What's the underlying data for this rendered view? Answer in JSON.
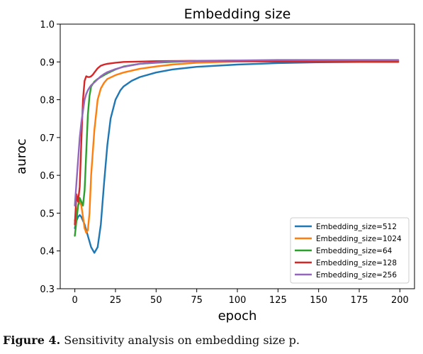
{
  "caption": {
    "label": "Figure 4.",
    "text": " Sensitivity analysis on embedding size p."
  },
  "chart_data": {
    "type": "line",
    "title": "Embedding size",
    "xlabel": "epoch",
    "ylabel": "auroc",
    "xlim": [
      -9,
      209
    ],
    "ylim": [
      0.3,
      1.0
    ],
    "xticks": [
      0,
      25,
      50,
      75,
      100,
      125,
      150,
      175,
      200
    ],
    "yticks": [
      0.3,
      0.4,
      0.5,
      0.6,
      0.7,
      0.8,
      0.9,
      1.0
    ],
    "grid": false,
    "legend_position": "lower-right",
    "series": [
      {
        "name": "Embedding_size=512",
        "color": "#1f77b4",
        "x": [
          0,
          1,
          2,
          3,
          4,
          6,
          8,
          10,
          12,
          14,
          16,
          18,
          20,
          22,
          25,
          28,
          30,
          35,
          40,
          50,
          60,
          75,
          100,
          125,
          150,
          175,
          199
        ],
        "y": [
          0.46,
          0.48,
          0.49,
          0.495,
          0.49,
          0.47,
          0.44,
          0.41,
          0.395,
          0.41,
          0.47,
          0.58,
          0.68,
          0.75,
          0.8,
          0.825,
          0.835,
          0.85,
          0.86,
          0.872,
          0.88,
          0.887,
          0.893,
          0.897,
          0.899,
          0.9,
          0.9
        ]
      },
      {
        "name": "Embedding_size=1024",
        "color": "#ff7f0e",
        "x": [
          0,
          1,
          2,
          3,
          4,
          5,
          6,
          7,
          8,
          9,
          10,
          12,
          14,
          16,
          18,
          20,
          25,
          30,
          40,
          50,
          60,
          75,
          100,
          125,
          150,
          175,
          199
        ],
        "y": [
          0.48,
          0.5,
          0.52,
          0.53,
          0.52,
          0.49,
          0.46,
          0.448,
          0.455,
          0.5,
          0.6,
          0.72,
          0.8,
          0.83,
          0.845,
          0.855,
          0.865,
          0.872,
          0.882,
          0.888,
          0.893,
          0.898,
          0.901,
          0.902,
          0.903,
          0.903,
          0.903
        ]
      },
      {
        "name": "Embedding_size=64",
        "color": "#2ca02c",
        "x": [
          0,
          1,
          2,
          3,
          4,
          5,
          6,
          7,
          8,
          9,
          10,
          12,
          14,
          16,
          18,
          20,
          25,
          30,
          40,
          50,
          60,
          75,
          100,
          125,
          150,
          175,
          199
        ],
        "y": [
          0.44,
          0.48,
          0.52,
          0.54,
          0.53,
          0.52,
          0.56,
          0.66,
          0.76,
          0.81,
          0.835,
          0.848,
          0.855,
          0.86,
          0.865,
          0.87,
          0.88,
          0.888,
          0.895,
          0.898,
          0.9,
          0.902,
          0.904,
          0.904,
          0.904,
          0.904,
          0.904
        ]
      },
      {
        "name": "Embedding_size=128",
        "color": "#d62728",
        "x": [
          0,
          1,
          2,
          3,
          4,
          5,
          6,
          7,
          8,
          9,
          10,
          11,
          12,
          14,
          16,
          18,
          20,
          25,
          30,
          40,
          50,
          75,
          100,
          125,
          150,
          175,
          199
        ],
        "y": [
          0.47,
          0.55,
          0.53,
          0.57,
          0.69,
          0.8,
          0.85,
          0.862,
          0.86,
          0.86,
          0.862,
          0.866,
          0.872,
          0.883,
          0.89,
          0.893,
          0.895,
          0.898,
          0.9,
          0.901,
          0.902,
          0.903,
          0.902,
          0.901,
          0.9,
          0.9,
          0.9
        ]
      },
      {
        "name": "Embedding_size=256",
        "color": "#9467bd",
        "x": [
          0,
          1,
          2,
          3,
          4,
          5,
          6,
          7,
          8,
          9,
          10,
          12,
          14,
          16,
          18,
          20,
          25,
          30,
          40,
          50,
          60,
          75,
          100,
          125,
          150,
          175,
          199
        ],
        "y": [
          0.52,
          0.58,
          0.64,
          0.7,
          0.74,
          0.77,
          0.8,
          0.815,
          0.825,
          0.832,
          0.838,
          0.846,
          0.854,
          0.862,
          0.868,
          0.873,
          0.881,
          0.887,
          0.895,
          0.899,
          0.901,
          0.903,
          0.904,
          0.905,
          0.905,
          0.905,
          0.905
        ]
      }
    ]
  }
}
